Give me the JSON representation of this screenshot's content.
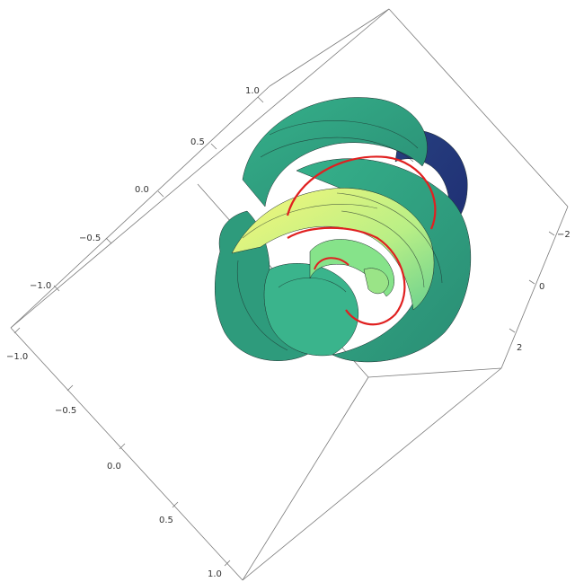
{
  "chart_data": {
    "type": "surface3d",
    "title": "",
    "axes": {
      "x": {
        "ticks": [
          "1.0",
          "0.5",
          "0.0",
          "−0.5",
          "−1.0"
        ]
      },
      "y": {
        "ticks": [
          "−1.0",
          "−0.5",
          "0.0",
          "0.5",
          "1.0"
        ]
      },
      "z": {
        "ticks": [
          "−2",
          "0",
          "2"
        ]
      }
    },
    "colors": {
      "surface_low": "#2a4b8f",
      "surface_mid": "#2fa47f",
      "surface_high": "#f3f57a",
      "curve": "#e02020",
      "box": "#7a7a7a"
    },
    "elements": [
      "spiral surface",
      "red spiral curve"
    ]
  }
}
